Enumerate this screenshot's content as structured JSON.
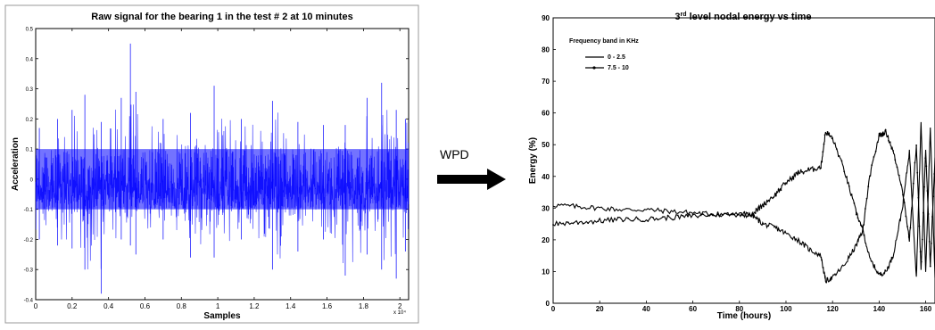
{
  "chart_data": [
    {
      "type": "line",
      "title": "Raw signal for the bearing 1 in the test # 2 at 10 minutes",
      "xlabel": "Samples",
      "ylabel": "Acceleration",
      "x_exponent_label": "x 10⁴",
      "xlim": [
        0,
        2.048
      ],
      "ylim": [
        -0.4,
        0.5
      ],
      "x_ticks": [
        0,
        0.2,
        0.4,
        0.6,
        0.8,
        1,
        1.2,
        1.4,
        1.6,
        1.8,
        2
      ],
      "x_tick_labels": [
        "0",
        "0.2",
        "0.4",
        "0.6",
        "0.8",
        "1",
        "1.2",
        "1.4",
        "1.6",
        "1.8",
        "2"
      ],
      "y_ticks": [
        -0.4,
        -0.3,
        -0.2,
        -0.1,
        0,
        0.1,
        0.2,
        0.3,
        0.4,
        0.5
      ],
      "y_tick_labels": [
        "-0.4",
        "-0.3",
        "-0.2",
        "-0.1",
        "0",
        "0.1",
        "0.2",
        "0.3",
        "0.4",
        "0.5"
      ],
      "grid": false,
      "series_color": "#0000ff",
      "series": [
        {
          "x": [
            0.02,
            0.12,
            0.2,
            0.27,
            0.36,
            0.47,
            0.52,
            0.55,
            0.7,
            0.85,
            0.98,
            1.13,
            1.3,
            1.44,
            1.58,
            1.7,
            1.82,
            1.9,
            1.98,
            2.03
          ],
          "envelope_top": [
            0.17,
            0.2,
            0.23,
            0.28,
            0.19,
            0.27,
            0.45,
            0.29,
            0.2,
            0.22,
            0.31,
            0.2,
            0.26,
            0.19,
            0.18,
            0.18,
            0.27,
            0.32,
            0.23,
            0.2
          ],
          "envelope_bottom": [
            -0.2,
            -0.22,
            -0.23,
            -0.3,
            -0.38,
            -0.2,
            -0.22,
            -0.25,
            -0.2,
            -0.26,
            -0.26,
            -0.2,
            -0.3,
            -0.24,
            -0.2,
            -0.32,
            -0.25,
            -0.3,
            -0.33,
            -0.24
          ]
        }
      ]
    },
    {
      "type": "line",
      "title": "3rd level nodal energy vs time",
      "title_main": "3",
      "title_sup": "rd",
      "title_rest": " level nodal energy vs time",
      "xlabel": "Time (hours)",
      "ylabel": "Energy (%)",
      "xlim": [
        0,
        164
      ],
      "ylim": [
        0,
        90
      ],
      "x_ticks": [
        0,
        20,
        40,
        60,
        80,
        100,
        120,
        140,
        160
      ],
      "x_tick_labels": [
        "0",
        "20",
        "40",
        "60",
        "80",
        "100",
        "120",
        "140",
        "160"
      ],
      "y_ticks": [
        0,
        10,
        20,
        30,
        40,
        50,
        60,
        70,
        80,
        90
      ],
      "y_tick_labels": [
        "0",
        "10",
        "20",
        "30",
        "40",
        "50",
        "60",
        "70",
        "80",
        "90"
      ],
      "grid": false,
      "legend_title": "Frequency band in KHz",
      "legend_position": "top-left",
      "series": [
        {
          "name": "0 - 2.5",
          "marker": "none",
          "x": [
            0,
            10,
            20,
            30,
            40,
            50,
            60,
            70,
            80,
            86,
            90,
            95,
            100,
            105,
            110,
            115,
            117,
            120,
            125,
            130,
            133,
            136,
            140,
            143,
            146,
            150,
            153,
            156,
            158,
            160,
            162,
            164
          ],
          "y": [
            31,
            30.5,
            30,
            29.5,
            29.5,
            29,
            28.5,
            28,
            28,
            27.5,
            25,
            24,
            22,
            20,
            17,
            15,
            7,
            8,
            12,
            18,
            23,
            14,
            9,
            10,
            15,
            30,
            48,
            8,
            57,
            10,
            55,
            8
          ]
        },
        {
          "name": "7.5 - 10",
          "marker": "dot",
          "x": [
            0,
            10,
            20,
            30,
            40,
            50,
            60,
            70,
            80,
            86,
            90,
            95,
            100,
            105,
            110,
            115,
            117,
            120,
            125,
            130,
            133,
            136,
            140,
            143,
            146,
            150,
            153,
            156,
            158,
            160,
            162,
            164
          ],
          "y": [
            25,
            25.5,
            26,
            26.5,
            26.5,
            27,
            27.5,
            28,
            28,
            28.5,
            31,
            34,
            38,
            41,
            42,
            43,
            54,
            52,
            42,
            29,
            23,
            40,
            53,
            54,
            48,
            36,
            20,
            50,
            10,
            48,
            12,
            46
          ]
        }
      ]
    }
  ],
  "arrow": {
    "label": "WPD"
  }
}
